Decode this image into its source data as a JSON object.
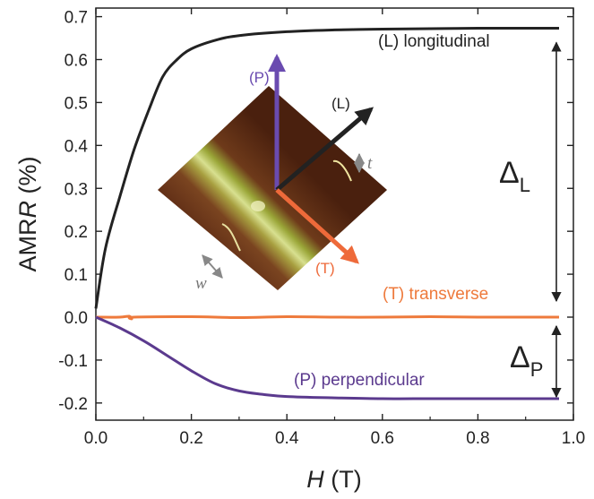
{
  "chart_data": {
    "type": "line",
    "title": "",
    "xlabel": {
      "italic": "H",
      "rest": " (T)"
    },
    "ylabel": {
      "pre": "AMR",
      "italic": "R",
      "rest": " (%)"
    },
    "xlim": [
      0,
      1.0
    ],
    "ylim": [
      -0.24,
      0.72
    ],
    "xticks": [
      0.0,
      0.2,
      0.4,
      0.6,
      0.8,
      1.0
    ],
    "xtick_labels": [
      "0.0",
      "0.2",
      "0.4",
      "0.6",
      "0.8",
      "1.0"
    ],
    "yticks": [
      0.7,
      0.6,
      0.5,
      0.4,
      0.3,
      0.2,
      0.1,
      0.0,
      -0.1,
      -0.2
    ],
    "ytick_labels": [
      "0.7",
      "0.6",
      "0.5",
      "0.4",
      "0.3",
      "0.2",
      "0.1",
      "0.0",
      "-0.1",
      "-0.2"
    ],
    "grid": false,
    "series": [
      {
        "name": "(L) longitudinal",
        "color": "#222222",
        "x": [
          0.0,
          0.02,
          0.05,
          0.08,
          0.11,
          0.14,
          0.17,
          0.2,
          0.25,
          0.3,
          0.4,
          0.5,
          0.6,
          0.7,
          0.8,
          0.9,
          0.97
        ],
        "y": [
          0.02,
          0.16,
          0.28,
          0.39,
          0.48,
          0.56,
          0.6,
          0.625,
          0.645,
          0.656,
          0.665,
          0.669,
          0.671,
          0.672,
          0.673,
          0.673,
          0.673
        ]
      },
      {
        "name": "(T) transverse",
        "color": "#ee7a3c",
        "x": [
          0.0,
          0.05,
          0.07,
          0.075,
          0.08,
          0.2,
          0.3,
          0.4,
          0.5,
          0.6,
          0.7,
          0.8,
          0.9,
          0.97
        ],
        "y": [
          0.0,
          0.0,
          0.002,
          -0.004,
          0.0,
          0.001,
          -0.001,
          0.001,
          0.0,
          0.0,
          0.001,
          0.0,
          0.0,
          0.0
        ]
      },
      {
        "name": "(P) perpendicular",
        "color": "#5b3a8e",
        "x": [
          0.0,
          0.05,
          0.1,
          0.15,
          0.2,
          0.25,
          0.3,
          0.35,
          0.4,
          0.5,
          0.6,
          0.7,
          0.8,
          0.9,
          0.97
        ],
        "y": [
          0.0,
          -0.025,
          -0.055,
          -0.09,
          -0.125,
          -0.155,
          -0.172,
          -0.18,
          -0.185,
          -0.188,
          -0.19,
          -0.19,
          -0.19,
          -0.19,
          -0.19
        ]
      }
    ],
    "annotations": {
      "delta_L": {
        "main": "Δ",
        "sub": "L",
        "from": 0.673,
        "to": 0.0
      },
      "delta_P": {
        "main": "Δ",
        "sub": "P",
        "from": 0.0,
        "to": -0.19
      }
    },
    "inset": {
      "axis_labels": {
        "P": "(P)",
        "L": "(L)",
        "T": "(T)"
      },
      "axis_colors": {
        "P": "#6a4bb0",
        "L": "#222222",
        "T": "#ee6a3a"
      },
      "dim_labels": {
        "t": "t",
        "w": "w"
      }
    }
  }
}
